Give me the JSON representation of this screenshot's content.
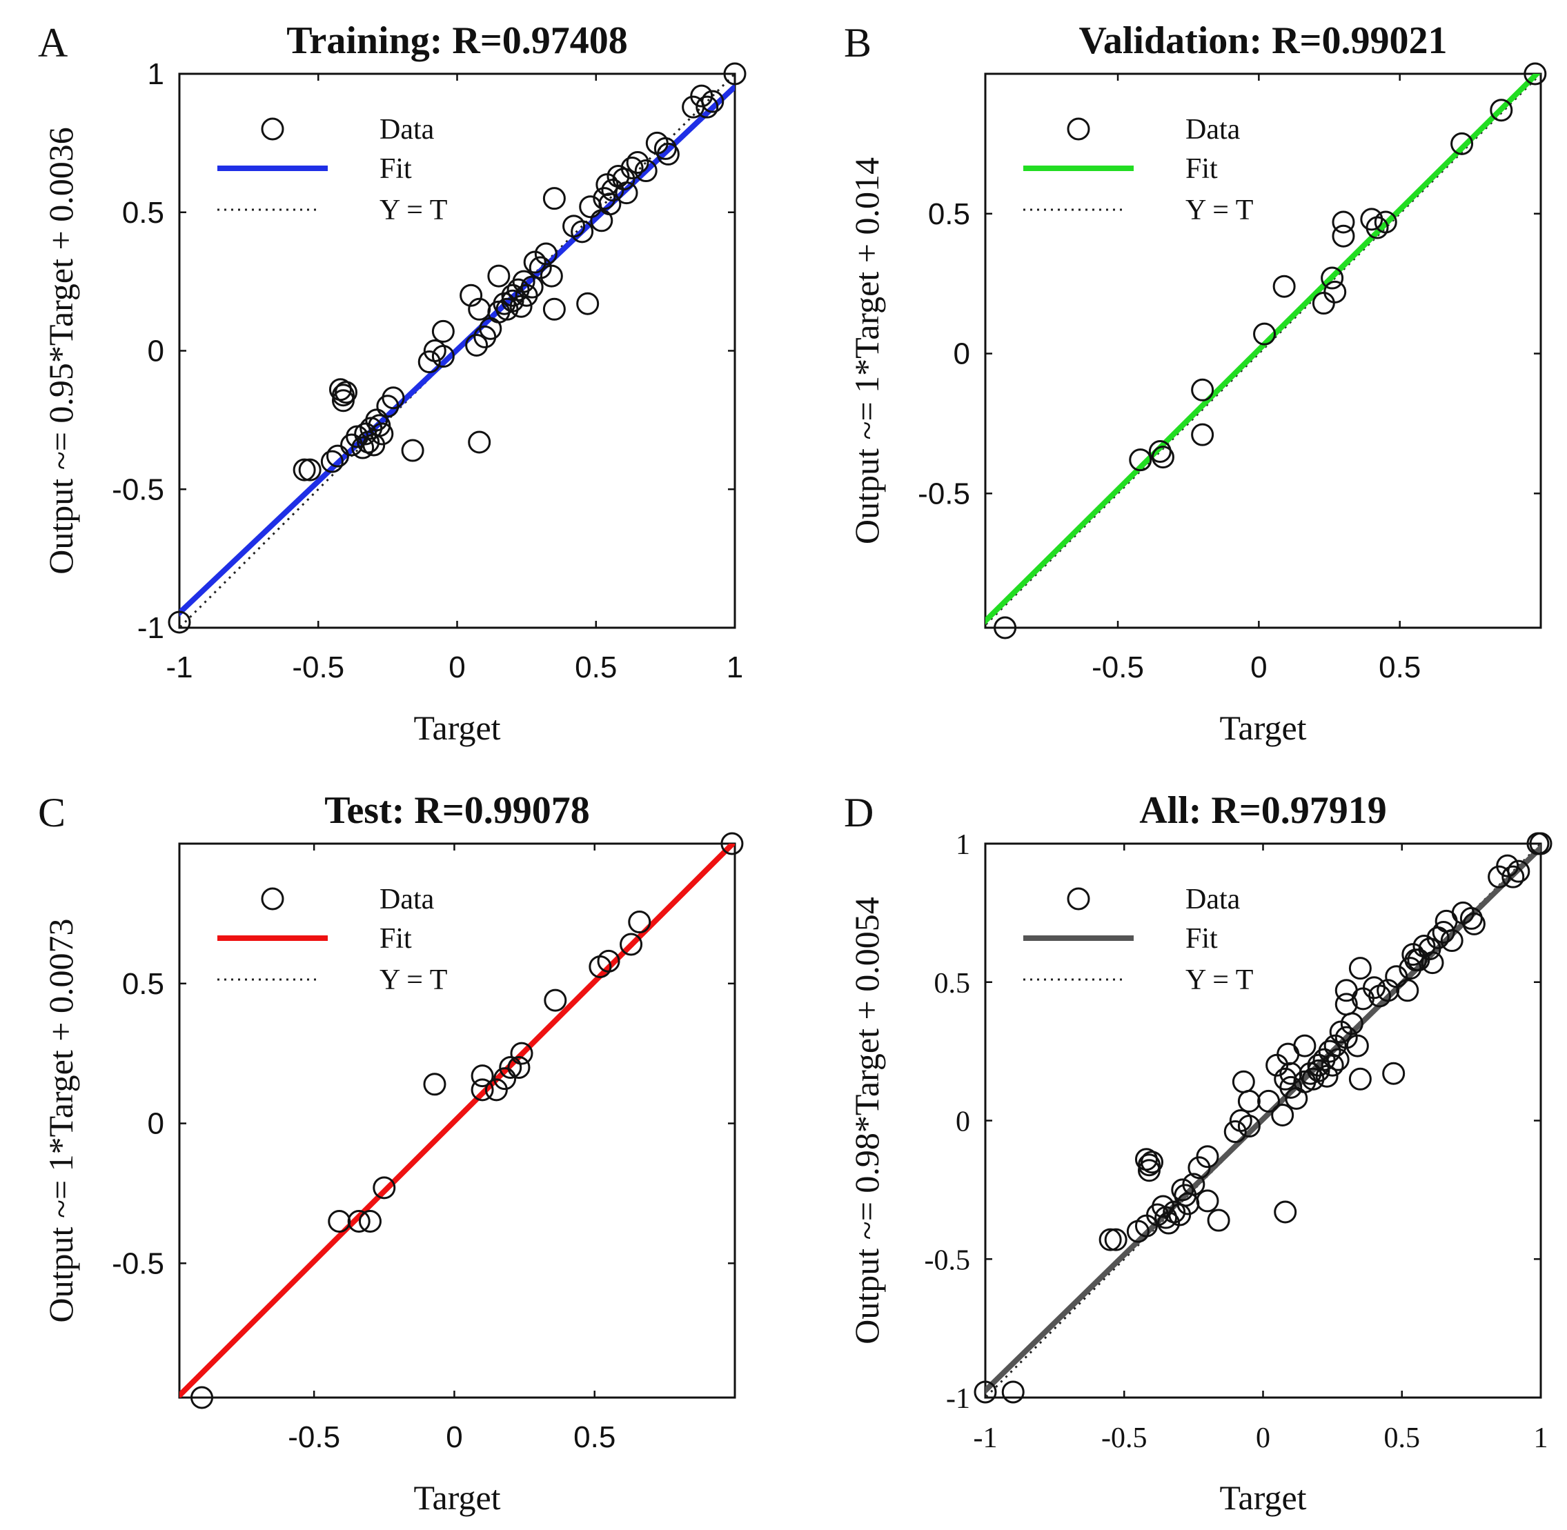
{
  "chart_data": [
    {
      "panel": "A",
      "type": "scatter",
      "title": "Training: R=0.97408",
      "xlabel": "Target",
      "ylabel": "Output ~= 0.95*Target + 0.0036",
      "xlim": [
        -1,
        1
      ],
      "ylim": [
        -1,
        1
      ],
      "xticks": [
        -1,
        -0.5,
        0,
        0.5,
        1
      ],
      "yticks": [
        -1,
        -0.5,
        0,
        0.5,
        1
      ],
      "xtick_labels": [
        "-1",
        "-0.5",
        "0",
        "0.5",
        "1"
      ],
      "ytick_labels": [
        "-1",
        "-0.5",
        "0",
        "0.5",
        "1"
      ],
      "tick_font": "sans",
      "fit": {
        "slope": 0.95,
        "intercept": 0.0036,
        "color": "#1f2fe6"
      },
      "legend": [
        "Data",
        "Fit",
        "Y = T"
      ],
      "points": [
        [
          -1,
          -0.98
        ],
        [
          -0.55,
          -0.43
        ],
        [
          -0.53,
          -0.43
        ],
        [
          -0.45,
          -0.4
        ],
        [
          -0.43,
          -0.38
        ],
        [
          -0.42,
          -0.14
        ],
        [
          -0.41,
          -0.16
        ],
        [
          -0.41,
          -0.18
        ],
        [
          -0.4,
          -0.15
        ],
        [
          -0.38,
          -0.34
        ],
        [
          -0.36,
          -0.31
        ],
        [
          -0.34,
          -0.35
        ],
        [
          -0.33,
          -0.3
        ],
        [
          -0.32,
          -0.33
        ],
        [
          -0.31,
          -0.28
        ],
        [
          -0.3,
          -0.34
        ],
        [
          -0.29,
          -0.25
        ],
        [
          -0.28,
          -0.27
        ],
        [
          -0.27,
          -0.3
        ],
        [
          -0.25,
          -0.2
        ],
        [
          -0.23,
          -0.17
        ],
        [
          -0.16,
          -0.36
        ],
        [
          -0.1,
          -0.04
        ],
        [
          -0.08,
          0.0
        ],
        [
          -0.05,
          -0.02
        ],
        [
          -0.05,
          0.07
        ],
        [
          0.05,
          0.2
        ],
        [
          0.07,
          0.02
        ],
        [
          0.08,
          -0.33
        ],
        [
          0.08,
          0.15
        ],
        [
          0.1,
          0.05
        ],
        [
          0.12,
          0.08
        ],
        [
          0.15,
          0.27
        ],
        [
          0.15,
          0.14
        ],
        [
          0.17,
          0.17
        ],
        [
          0.18,
          0.15
        ],
        [
          0.2,
          0.2
        ],
        [
          0.2,
          0.18
        ],
        [
          0.22,
          0.22
        ],
        [
          0.23,
          0.16
        ],
        [
          0.24,
          0.25
        ],
        [
          0.25,
          0.2
        ],
        [
          0.27,
          0.23
        ],
        [
          0.28,
          0.32
        ],
        [
          0.3,
          0.3
        ],
        [
          0.32,
          0.35
        ],
        [
          0.34,
          0.27
        ],
        [
          0.35,
          0.55
        ],
        [
          0.35,
          0.15
        ],
        [
          0.42,
          0.45
        ],
        [
          0.45,
          0.43
        ],
        [
          0.47,
          0.17
        ],
        [
          0.48,
          0.52
        ],
        [
          0.52,
          0.47
        ],
        [
          0.53,
          0.55
        ],
        [
          0.54,
          0.6
        ],
        [
          0.55,
          0.53
        ],
        [
          0.56,
          0.58
        ],
        [
          0.58,
          0.63
        ],
        [
          0.6,
          0.62
        ],
        [
          0.61,
          0.57
        ],
        [
          0.63,
          0.66
        ],
        [
          0.65,
          0.68
        ],
        [
          0.68,
          0.65
        ],
        [
          0.72,
          0.75
        ],
        [
          0.75,
          0.73
        ],
        [
          0.76,
          0.71
        ],
        [
          0.85,
          0.88
        ],
        [
          0.88,
          0.92
        ],
        [
          0.9,
          0.88
        ],
        [
          0.92,
          0.9
        ],
        [
          1.0,
          1.0
        ]
      ]
    },
    {
      "panel": "B",
      "type": "scatter",
      "title": "Validation: R=0.99021",
      "xlabel": "Target",
      "ylabel": "Output ~= 1*Target + 0.014",
      "xlim": [
        -0.97,
        1.0
      ],
      "ylim": [
        -0.98,
        1.0
      ],
      "xticks": [
        -0.5,
        0,
        0.5
      ],
      "yticks": [
        -0.5,
        0,
        0.5
      ],
      "xtick_labels": [
        "-0.5",
        "0",
        "0.5"
      ],
      "ytick_labels": [
        "-0.5",
        "0",
        "0.5"
      ],
      "tick_font": "sans",
      "fit": {
        "slope": 1.0,
        "intercept": 0.014,
        "color": "#22dd22"
      },
      "legend": [
        "Data",
        "Fit",
        "Y = T"
      ],
      "points": [
        [
          -0.9,
          -0.98
        ],
        [
          -0.42,
          -0.38
        ],
        [
          -0.35,
          -0.35
        ],
        [
          -0.34,
          -0.37
        ],
        [
          -0.2,
          -0.13
        ],
        [
          -0.2,
          -0.29
        ],
        [
          0.02,
          0.07
        ],
        [
          0.09,
          0.24
        ],
        [
          0.23,
          0.18
        ],
        [
          0.26,
          0.27
        ],
        [
          0.27,
          0.22
        ],
        [
          0.3,
          0.47
        ],
        [
          0.3,
          0.42
        ],
        [
          0.4,
          0.48
        ],
        [
          0.42,
          0.45
        ],
        [
          0.45,
          0.47
        ],
        [
          0.72,
          0.75
        ],
        [
          0.86,
          0.87
        ],
        [
          0.98,
          1.0
        ]
      ]
    },
    {
      "panel": "C",
      "type": "scatter",
      "title": "Test: R=0.99078",
      "xlabel": "Target",
      "ylabel": "Output ~= 1*Target + 0.0073",
      "xlim": [
        -0.98,
        1.0
      ],
      "ylim": [
        -0.98,
        1.0
      ],
      "xticks": [
        -0.5,
        0,
        0.5
      ],
      "yticks": [
        -0.5,
        0,
        0.5
      ],
      "xtick_labels": [
        "-0.5",
        "0",
        "0.5"
      ],
      "ytick_labels": [
        "-0.5",
        "0",
        "0.5"
      ],
      "tick_font": "sans",
      "fit": {
        "slope": 1.0,
        "intercept": 0.0073,
        "color": "#ee1111"
      },
      "legend": [
        "Data",
        "Fit",
        "Y = T"
      ],
      "points": [
        [
          -0.9,
          -0.98
        ],
        [
          -0.41,
          -0.35
        ],
        [
          -0.34,
          -0.35
        ],
        [
          -0.3,
          -0.35
        ],
        [
          -0.25,
          -0.23
        ],
        [
          -0.07,
          0.14
        ],
        [
          0.1,
          0.17
        ],
        [
          0.1,
          0.12
        ],
        [
          0.15,
          0.12
        ],
        [
          0.18,
          0.16
        ],
        [
          0.2,
          0.2
        ],
        [
          0.23,
          0.2
        ],
        [
          0.24,
          0.25
        ],
        [
          0.36,
          0.44
        ],
        [
          0.52,
          0.56
        ],
        [
          0.55,
          0.58
        ],
        [
          0.63,
          0.64
        ],
        [
          0.66,
          0.72
        ],
        [
          0.99,
          1.0
        ]
      ]
    },
    {
      "panel": "D",
      "type": "scatter",
      "title": "All: R=0.97919",
      "xlabel": "Target",
      "ylabel": "Output ~= 0.98*Target + 0.0054",
      "xlim": [
        -1,
        1
      ],
      "ylim": [
        -1,
        1
      ],
      "xticks": [
        -1,
        -0.5,
        0,
        0.5,
        1
      ],
      "yticks": [
        -1,
        -0.5,
        0,
        0.5,
        1
      ],
      "xtick_labels": [
        "-1",
        "-0.5",
        "0",
        "0.5",
        "1"
      ],
      "ytick_labels": [
        "-1",
        "-0.5",
        "0",
        "0.5",
        "1"
      ],
      "tick_font": "serif",
      "fit": {
        "slope": 0.98,
        "intercept": 0.0054,
        "color": "#555555"
      },
      "legend": [
        "Data",
        "Fit",
        "Y = T"
      ],
      "points": [
        [
          -1,
          -0.98
        ],
        [
          -0.9,
          -0.98
        ],
        [
          -0.55,
          -0.43
        ],
        [
          -0.53,
          -0.43
        ],
        [
          -0.45,
          -0.4
        ],
        [
          -0.42,
          -0.38
        ],
        [
          -0.42,
          -0.14
        ],
        [
          -0.41,
          -0.16
        ],
        [
          -0.41,
          -0.18
        ],
        [
          -0.4,
          -0.15
        ],
        [
          -0.38,
          -0.34
        ],
        [
          -0.36,
          -0.31
        ],
        [
          -0.35,
          -0.35
        ],
        [
          -0.34,
          -0.37
        ],
        [
          -0.32,
          -0.33
        ],
        [
          -0.3,
          -0.34
        ],
        [
          -0.29,
          -0.25
        ],
        [
          -0.28,
          -0.27
        ],
        [
          -0.27,
          -0.3
        ],
        [
          -0.25,
          -0.23
        ],
        [
          -0.23,
          -0.17
        ],
        [
          -0.2,
          -0.13
        ],
        [
          -0.2,
          -0.29
        ],
        [
          -0.16,
          -0.36
        ],
        [
          -0.1,
          -0.04
        ],
        [
          -0.08,
          0.0
        ],
        [
          -0.07,
          0.14
        ],
        [
          -0.05,
          -0.02
        ],
        [
          -0.05,
          0.07
        ],
        [
          0.02,
          0.07
        ],
        [
          0.05,
          0.2
        ],
        [
          0.07,
          0.02
        ],
        [
          0.08,
          -0.33
        ],
        [
          0.08,
          0.15
        ],
        [
          0.09,
          0.24
        ],
        [
          0.1,
          0.17
        ],
        [
          0.1,
          0.12
        ],
        [
          0.12,
          0.08
        ],
        [
          0.15,
          0.27
        ],
        [
          0.15,
          0.14
        ],
        [
          0.17,
          0.17
        ],
        [
          0.18,
          0.15
        ],
        [
          0.2,
          0.2
        ],
        [
          0.2,
          0.18
        ],
        [
          0.22,
          0.22
        ],
        [
          0.23,
          0.16
        ],
        [
          0.24,
          0.25
        ],
        [
          0.25,
          0.2
        ],
        [
          0.26,
          0.27
        ],
        [
          0.27,
          0.22
        ],
        [
          0.28,
          0.32
        ],
        [
          0.3,
          0.47
        ],
        [
          0.3,
          0.42
        ],
        [
          0.3,
          0.3
        ],
        [
          0.32,
          0.35
        ],
        [
          0.34,
          0.27
        ],
        [
          0.35,
          0.55
        ],
        [
          0.35,
          0.15
        ],
        [
          0.36,
          0.44
        ],
        [
          0.4,
          0.48
        ],
        [
          0.42,
          0.45
        ],
        [
          0.45,
          0.47
        ],
        [
          0.47,
          0.17
        ],
        [
          0.48,
          0.52
        ],
        [
          0.52,
          0.47
        ],
        [
          0.53,
          0.55
        ],
        [
          0.54,
          0.6
        ],
        [
          0.55,
          0.58
        ],
        [
          0.56,
          0.58
        ],
        [
          0.58,
          0.63
        ],
        [
          0.6,
          0.62
        ],
        [
          0.61,
          0.57
        ],
        [
          0.63,
          0.66
        ],
        [
          0.65,
          0.68
        ],
        [
          0.66,
          0.72
        ],
        [
          0.68,
          0.65
        ],
        [
          0.72,
          0.75
        ],
        [
          0.75,
          0.73
        ],
        [
          0.76,
          0.71
        ],
        [
          0.85,
          0.88
        ],
        [
          0.88,
          0.92
        ],
        [
          0.9,
          0.88
        ],
        [
          0.92,
          0.9
        ],
        [
          0.99,
          1.0
        ],
        [
          1.0,
          1.0
        ]
      ]
    }
  ]
}
